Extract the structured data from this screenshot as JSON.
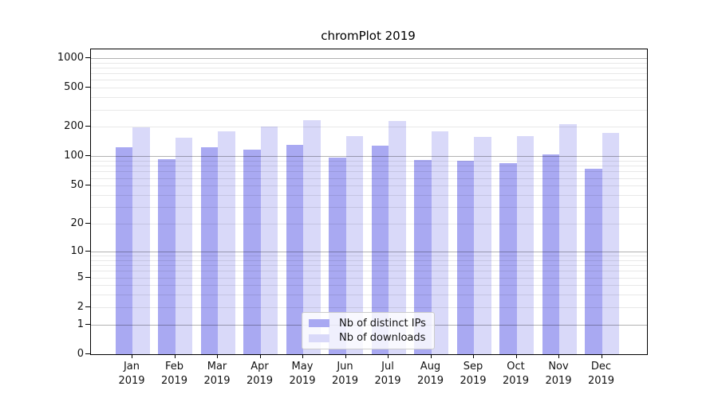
{
  "title": "chromPlot 2019",
  "chart_data": {
    "type": "bar",
    "title": "chromPlot 2019",
    "year": "2019",
    "months": [
      "Jan",
      "Feb",
      "Mar",
      "Apr",
      "May",
      "Jun",
      "Jul",
      "Aug",
      "Sep",
      "Oct",
      "Nov",
      "Dec"
    ],
    "categories": [
      "Jan 2019",
      "Feb 2019",
      "Mar 2019",
      "Apr 2019",
      "May 2019",
      "Jun 2019",
      "Jul 2019",
      "Aug 2019",
      "Sep 2019",
      "Oct 2019",
      "Nov 2019",
      "Dec 2019"
    ],
    "series": [
      {
        "name": "Nb of distinct IPs",
        "color": "#a9a9f2",
        "values": [
          125,
          94,
          123,
          117,
          132,
          98,
          128,
          91,
          90,
          85,
          105,
          74
        ]
      },
      {
        "name": "Nb of downloads",
        "color": "#d9d9f9",
        "values": [
          199,
          155,
          181,
          203,
          234,
          161,
          231,
          179,
          158,
          161,
          212,
          174
        ]
      }
    ],
    "y_ticks": [
      0,
      1,
      2,
      5,
      10,
      20,
      50,
      100,
      200,
      500,
      1000
    ],
    "y_major_gridlines": [
      1,
      10,
      100,
      1000
    ],
    "y_minor_gridlines": [
      3,
      4,
      6,
      7,
      8,
      9,
      30,
      40,
      60,
      70,
      80,
      90,
      300,
      400,
      600,
      700,
      800,
      900
    ],
    "y_scale": "log10(value+1)",
    "ylim": [
      0,
      1230
    ],
    "grid": true,
    "legend_position": "lower center"
  }
}
